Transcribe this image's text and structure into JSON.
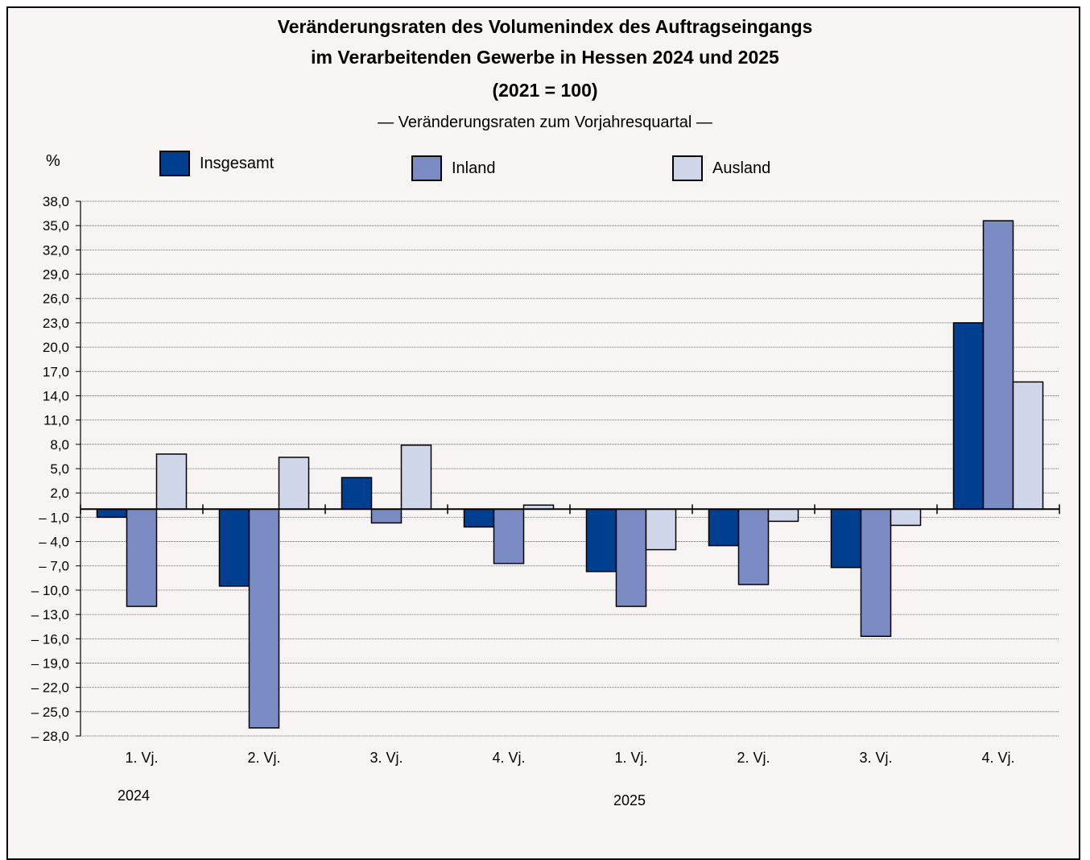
{
  "title_line1": "Veränderungsraten des Volumenindex des Auftragseingangs",
  "title_line2": "im Verarbeitenden Gewerbe in Hessen 2024 und 2025",
  "title_line3": "(2021 = 100)",
  "subtitle": "— Veränderungsraten zum Vorjahresquartal —",
  "unit_label": "%",
  "legend": [
    {
      "label": "Insgesamt",
      "color": "#003f8f"
    },
    {
      "label": "Inland",
      "color": "#7b8cc4"
    },
    {
      "label": "Ausland",
      "color": "#d0d6ea"
    }
  ],
  "year_labels": [
    "2024",
    "2025"
  ],
  "chart_data": {
    "type": "bar",
    "title": "Veränderungsraten des Volumenindex des Auftragseingangs im Verarbeitenden Gewerbe in Hessen 2024 und 2025 (2021 = 100)",
    "subtitle": "— Veränderungsraten zum Vorjahresquartal —",
    "ylabel": "%",
    "ylim": [
      -28,
      38
    ],
    "ytick_step": 3,
    "yticks": [
      "38,0",
      "35,0",
      "32,0",
      "29,0",
      "26,0",
      "23,0",
      "20,0",
      "17,0",
      "14,0",
      "11,0",
      "8,0",
      "5,0",
      "2,0",
      "– 1,0",
      "– 4,0",
      "– 7,0",
      "– 10,0",
      "– 13,0",
      "– 16,0",
      "– 19,0",
      "– 22,0",
      "– 25,0",
      "– 28,0"
    ],
    "categories": [
      "1. Vj.",
      "2. Vj.",
      "3. Vj.",
      "4. Vj.",
      "1. Vj.",
      "2. Vj.",
      "3. Vj.",
      "4. Vj."
    ],
    "series": [
      {
        "name": "Insgesamt",
        "color": "#003f8f",
        "values": [
          -1.0,
          -9.5,
          3.9,
          -2.2,
          -7.7,
          -4.5,
          -7.2,
          23.0
        ]
      },
      {
        "name": "Inland",
        "color": "#7b8cc4",
        "values": [
          -12.0,
          -27.0,
          -1.7,
          -6.7,
          -12.0,
          -9.3,
          -15.7,
          35.6
        ]
      },
      {
        "name": "Ausland",
        "color": "#d0d6ea",
        "values": [
          6.8,
          6.4,
          7.9,
          0.5,
          -5.0,
          -1.5,
          -2.0,
          15.7
        ]
      }
    ],
    "grid": true,
    "legend": "top"
  }
}
